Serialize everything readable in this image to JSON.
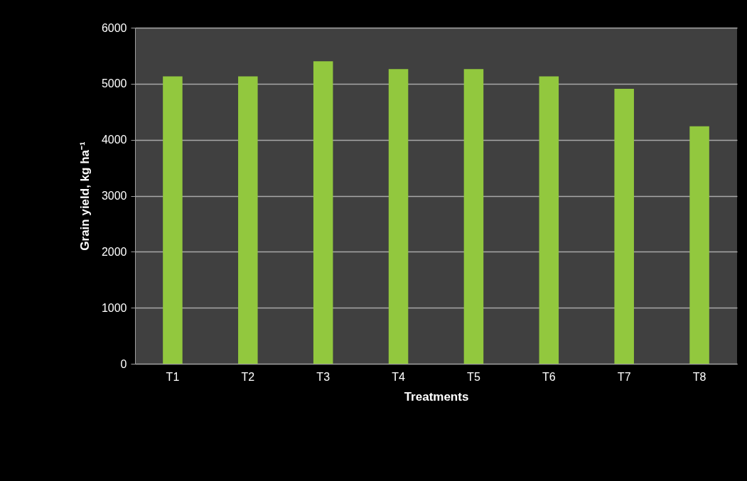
{
  "chart_data": {
    "type": "bar",
    "xlabel": "Treatments",
    "ylabel": "Grain yield,  kg ha⁻¹",
    "categories": [
      "T1",
      "T2",
      "T3",
      "T4",
      "T5",
      "T6",
      "T7",
      "T8"
    ],
    "values": [
      5130,
      5130,
      5400,
      5260,
      5260,
      5130,
      4910,
      4240
    ],
    "color": "#92c83e",
    "ylim": [
      0,
      6000
    ],
    "yticks": [
      0,
      1000,
      2000,
      3000,
      4000,
      5000,
      6000
    ],
    "grid": true
  }
}
